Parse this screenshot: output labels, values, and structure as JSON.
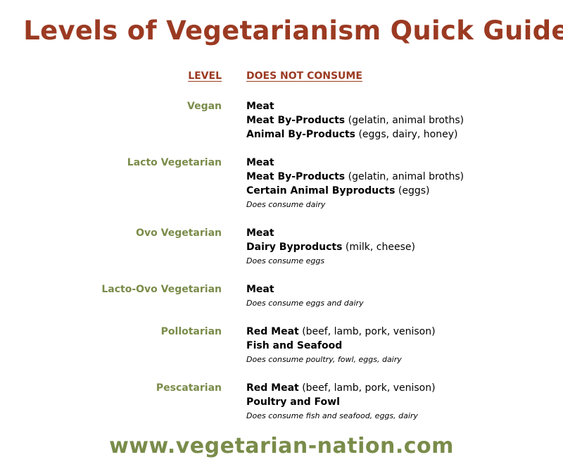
{
  "title": "Levels of Vegetarianism Quick Guide",
  "headers": {
    "level": "LEVEL",
    "does_not_consume": "DOES NOT CONSUME"
  },
  "levels": [
    {
      "name": "Vegan",
      "items": [
        {
          "bold": "Meat",
          "detail": ""
        },
        {
          "bold": "Meat By-Products",
          "detail": "(gelatin, animal broths)"
        },
        {
          "bold": "Animal By-Products",
          "detail": "(eggs, dairy, honey)"
        }
      ],
      "note": ""
    },
    {
      "name": "Lacto Vegetarian",
      "items": [
        {
          "bold": "Meat",
          "detail": ""
        },
        {
          "bold": "Meat By-Products",
          "detail": "(gelatin, animal broths)"
        },
        {
          "bold": "Certain Animal Byproducts",
          "detail": "(eggs)"
        }
      ],
      "note": "Does consume dairy"
    },
    {
      "name": "Ovo Vegetarian",
      "items": [
        {
          "bold": "Meat",
          "detail": ""
        },
        {
          "bold": "Dairy Byproducts",
          "detail": "(milk, cheese)"
        }
      ],
      "note": "Does consume eggs"
    },
    {
      "name": "Lacto-Ovo Vegetarian",
      "items": [
        {
          "bold": "Meat",
          "detail": ""
        }
      ],
      "note": "Does consume eggs and dairy"
    },
    {
      "name": "Pollotarian",
      "items": [
        {
          "bold": "Red Meat",
          "detail": "(beef, lamb, pork, venison)"
        },
        {
          "bold": "Fish and Seafood",
          "detail": ""
        }
      ],
      "note": "Does consume poultry, fowl, eggs, dairy"
    },
    {
      "name": "Pescatarian",
      "items": [
        {
          "bold": "Red Meat",
          "detail": "(beef, lamb, pork, venison)"
        },
        {
          "bold": "Poultry and Fowl",
          "detail": ""
        }
      ],
      "note": "Does consume fish and seafood, eggs, dairy"
    }
  ],
  "footer": "www.vegetarian-nation.com",
  "colors": {
    "title": "#9b3a22",
    "level": "#7a8c4a",
    "footer": "#7a8c4a"
  }
}
